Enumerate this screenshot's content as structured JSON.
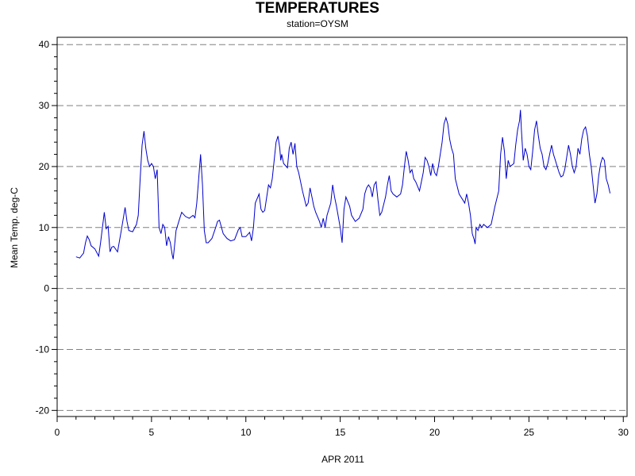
{
  "chart_data": {
    "type": "line",
    "title": "TEMPERATURES",
    "subtitle": "station=OYSM",
    "xlabel": "APR 2011",
    "ylabel": "Mean Temp. deg-C",
    "xlim": [
      0,
      30.2
    ],
    "ylim": [
      -21,
      41.2
    ],
    "x_ticks": [
      0,
      5,
      10,
      15,
      20,
      25,
      30
    ],
    "x_tick_labels": [
      "0",
      "5",
      "10",
      "15",
      "20",
      "25",
      "30"
    ],
    "y_ticks": [
      -20,
      -10,
      0,
      10,
      20,
      30,
      40
    ],
    "y_tick_labels": [
      "-20",
      "-10",
      "0",
      "10",
      "20",
      "30",
      "40"
    ],
    "grid": "horizontal dashed",
    "colors": {
      "series": "#0000cc",
      "grid": "#808080",
      "axis": "#000000"
    },
    "series": [
      {
        "points": [
          [
            1.0,
            5.2
          ],
          [
            1.2,
            5.0
          ],
          [
            1.4,
            5.8
          ],
          [
            1.5,
            7.5
          ],
          [
            1.6,
            8.6
          ],
          [
            1.7,
            8.0
          ],
          [
            1.8,
            7.0
          ],
          [
            2.0,
            6.5
          ],
          [
            2.2,
            5.3
          ],
          [
            2.3,
            7.5
          ],
          [
            2.5,
            12.5
          ],
          [
            2.6,
            9.8
          ],
          [
            2.7,
            10.2
          ],
          [
            2.8,
            6.0
          ],
          [
            2.9,
            6.8
          ],
          [
            3.0,
            6.9
          ],
          [
            3.2,
            6.0
          ],
          [
            3.4,
            9.5
          ],
          [
            3.6,
            13.3
          ],
          [
            3.7,
            11.0
          ],
          [
            3.8,
            9.5
          ],
          [
            4.0,
            9.3
          ],
          [
            4.2,
            10.5
          ],
          [
            4.3,
            12.0
          ],
          [
            4.4,
            18.0
          ],
          [
            4.5,
            23.5
          ],
          [
            4.6,
            25.8
          ],
          [
            4.7,
            23.0
          ],
          [
            4.8,
            21.0
          ],
          [
            4.9,
            20.0
          ],
          [
            5.0,
            20.5
          ],
          [
            5.1,
            20.0
          ],
          [
            5.2,
            18.0
          ],
          [
            5.3,
            19.5
          ],
          [
            5.4,
            10.0
          ],
          [
            5.5,
            9.0
          ],
          [
            5.6,
            10.5
          ],
          [
            5.7,
            10.0
          ],
          [
            5.8,
            7.0
          ],
          [
            5.9,
            8.5
          ],
          [
            6.0,
            7.5
          ],
          [
            6.1,
            5.5
          ],
          [
            6.15,
            4.8
          ],
          [
            6.3,
            9.5
          ],
          [
            6.5,
            11.5
          ],
          [
            6.6,
            12.5
          ],
          [
            6.8,
            11.8
          ],
          [
            7.0,
            11.5
          ],
          [
            7.2,
            12.0
          ],
          [
            7.3,
            11.6
          ],
          [
            7.4,
            14.0
          ],
          [
            7.5,
            18.0
          ],
          [
            7.6,
            22.0
          ],
          [
            7.7,
            17.0
          ],
          [
            7.8,
            9.5
          ],
          [
            7.9,
            7.5
          ],
          [
            8.0,
            7.5
          ],
          [
            8.2,
            8.2
          ],
          [
            8.4,
            10.0
          ],
          [
            8.5,
            11.0
          ],
          [
            8.6,
            11.2
          ],
          [
            8.8,
            9.0
          ],
          [
            9.0,
            8.2
          ],
          [
            9.2,
            7.8
          ],
          [
            9.4,
            8.0
          ],
          [
            9.6,
            9.6
          ],
          [
            9.7,
            10.0
          ],
          [
            9.8,
            8.5
          ],
          [
            10.0,
            8.5
          ],
          [
            10.2,
            9.2
          ],
          [
            10.3,
            7.8
          ],
          [
            10.4,
            10.0
          ],
          [
            10.5,
            14.0
          ],
          [
            10.7,
            15.5
          ],
          [
            10.8,
            13.0
          ],
          [
            10.9,
            12.5
          ],
          [
            11.0,
            12.8
          ],
          [
            11.2,
            17.0
          ],
          [
            11.3,
            16.5
          ],
          [
            11.4,
            18.0
          ],
          [
            11.5,
            21.0
          ],
          [
            11.6,
            24.0
          ],
          [
            11.7,
            25.0
          ],
          [
            11.8,
            23.0
          ],
          [
            11.85,
            21.0
          ],
          [
            11.9,
            22.0
          ],
          [
            12.0,
            20.5
          ],
          [
            12.2,
            19.8
          ],
          [
            12.3,
            23.0
          ],
          [
            12.4,
            24.0
          ],
          [
            12.5,
            22.0
          ],
          [
            12.6,
            23.8
          ],
          [
            12.7,
            20.0
          ],
          [
            12.8,
            19.0
          ],
          [
            13.0,
            16.0
          ],
          [
            13.2,
            13.5
          ],
          [
            13.3,
            14.0
          ],
          [
            13.4,
            16.5
          ],
          [
            13.5,
            15.0
          ],
          [
            13.6,
            13.5
          ],
          [
            13.7,
            12.5
          ],
          [
            13.9,
            11.0
          ],
          [
            14.0,
            10.0
          ],
          [
            14.1,
            11.5
          ],
          [
            14.2,
            10.0
          ],
          [
            14.3,
            12.0
          ],
          [
            14.5,
            14.0
          ],
          [
            14.6,
            17.0
          ],
          [
            14.7,
            15.0
          ],
          [
            14.8,
            13.5
          ],
          [
            15.0,
            10.0
          ],
          [
            15.1,
            7.5
          ],
          [
            15.2,
            13.0
          ],
          [
            15.3,
            15.0
          ],
          [
            15.5,
            13.5
          ],
          [
            15.6,
            12.0
          ],
          [
            15.8,
            11.0
          ],
          [
            16.0,
            11.5
          ],
          [
            16.2,
            13.0
          ],
          [
            16.3,
            15.5
          ],
          [
            16.4,
            16.5
          ],
          [
            16.5,
            17.0
          ],
          [
            16.6,
            16.5
          ],
          [
            16.7,
            15.0
          ],
          [
            16.8,
            17.0
          ],
          [
            16.9,
            17.5
          ],
          [
            17.0,
            14.5
          ],
          [
            17.1,
            12.0
          ],
          [
            17.2,
            12.5
          ],
          [
            17.4,
            15.0
          ],
          [
            17.5,
            17.0
          ],
          [
            17.6,
            18.5
          ],
          [
            17.7,
            16.0
          ],
          [
            17.8,
            15.5
          ],
          [
            18.0,
            15.0
          ],
          [
            18.2,
            15.5
          ],
          [
            18.3,
            17.0
          ],
          [
            18.4,
            20.0
          ],
          [
            18.5,
            22.5
          ],
          [
            18.6,
            21.0
          ],
          [
            18.7,
            19.0
          ],
          [
            18.8,
            19.5
          ],
          [
            18.9,
            18.0
          ],
          [
            19.0,
            17.5
          ],
          [
            19.2,
            16.0
          ],
          [
            19.3,
            17.5
          ],
          [
            19.4,
            19.0
          ],
          [
            19.5,
            21.5
          ],
          [
            19.6,
            21.0
          ],
          [
            19.7,
            20.0
          ],
          [
            19.8,
            18.5
          ],
          [
            19.9,
            20.5
          ],
          [
            20.0,
            19.0
          ],
          [
            20.1,
            18.5
          ],
          [
            20.2,
            20.0
          ],
          [
            20.4,
            24.0
          ],
          [
            20.5,
            27.0
          ],
          [
            20.6,
            28.0
          ],
          [
            20.7,
            27.0
          ],
          [
            20.8,
            24.5
          ],
          [
            20.9,
            23.0
          ],
          [
            21.0,
            22.0
          ],
          [
            21.1,
            18.0
          ],
          [
            21.3,
            15.5
          ],
          [
            21.5,
            14.5
          ],
          [
            21.6,
            14.0
          ],
          [
            21.7,
            15.5
          ],
          [
            21.8,
            14.0
          ],
          [
            21.9,
            12.0
          ],
          [
            22.0,
            9.0
          ],
          [
            22.1,
            8.0
          ],
          [
            22.15,
            7.3
          ],
          [
            22.2,
            10.0
          ],
          [
            22.3,
            9.5
          ],
          [
            22.4,
            10.5
          ],
          [
            22.5,
            10.0
          ],
          [
            22.6,
            10.5
          ],
          [
            22.8,
            10.0
          ],
          [
            23.0,
            10.5
          ],
          [
            23.2,
            13.5
          ],
          [
            23.4,
            16.0
          ],
          [
            23.5,
            22.0
          ],
          [
            23.6,
            24.8
          ],
          [
            23.7,
            22.5
          ],
          [
            23.8,
            18.0
          ],
          [
            23.9,
            21.0
          ],
          [
            24.0,
            20.0
          ],
          [
            24.2,
            20.5
          ],
          [
            24.3,
            23.5
          ],
          [
            24.4,
            26.0
          ],
          [
            24.5,
            27.5
          ],
          [
            24.55,
            29.3
          ],
          [
            24.6,
            26.0
          ],
          [
            24.7,
            21.0
          ],
          [
            24.8,
            23.0
          ],
          [
            24.9,
            22.0
          ],
          [
            25.0,
            20.0
          ],
          [
            25.1,
            19.5
          ],
          [
            25.2,
            22.5
          ],
          [
            25.3,
            26.0
          ],
          [
            25.4,
            27.5
          ],
          [
            25.5,
            25.0
          ],
          [
            25.6,
            23.0
          ],
          [
            25.7,
            22.0
          ],
          [
            25.8,
            20.0
          ],
          [
            25.9,
            19.5
          ],
          [
            26.0,
            20.5
          ],
          [
            26.1,
            22.0
          ],
          [
            26.2,
            23.5
          ],
          [
            26.3,
            22.0
          ],
          [
            26.4,
            21.0
          ],
          [
            26.5,
            20.0
          ],
          [
            26.6,
            19.0
          ],
          [
            26.7,
            18.3
          ],
          [
            26.8,
            18.5
          ],
          [
            26.9,
            19.5
          ],
          [
            27.0,
            21.5
          ],
          [
            27.1,
            23.5
          ],
          [
            27.2,
            22.0
          ],
          [
            27.3,
            20.0
          ],
          [
            27.4,
            19.0
          ],
          [
            27.5,
            20.0
          ],
          [
            27.6,
            23.0
          ],
          [
            27.7,
            22.0
          ],
          [
            27.8,
            24.5
          ],
          [
            27.9,
            26.0
          ],
          [
            28.0,
            26.5
          ],
          [
            28.1,
            25.0
          ],
          [
            28.2,
            22.0
          ],
          [
            28.3,
            20.0
          ],
          [
            28.4,
            17.0
          ],
          [
            28.5,
            14.0
          ],
          [
            28.6,
            15.5
          ],
          [
            28.7,
            18.5
          ],
          [
            28.8,
            20.5
          ],
          [
            28.9,
            21.5
          ],
          [
            29.0,
            21.0
          ],
          [
            29.1,
            18.0
          ],
          [
            29.2,
            17.0
          ],
          [
            29.3,
            15.6
          ]
        ]
      }
    ]
  }
}
